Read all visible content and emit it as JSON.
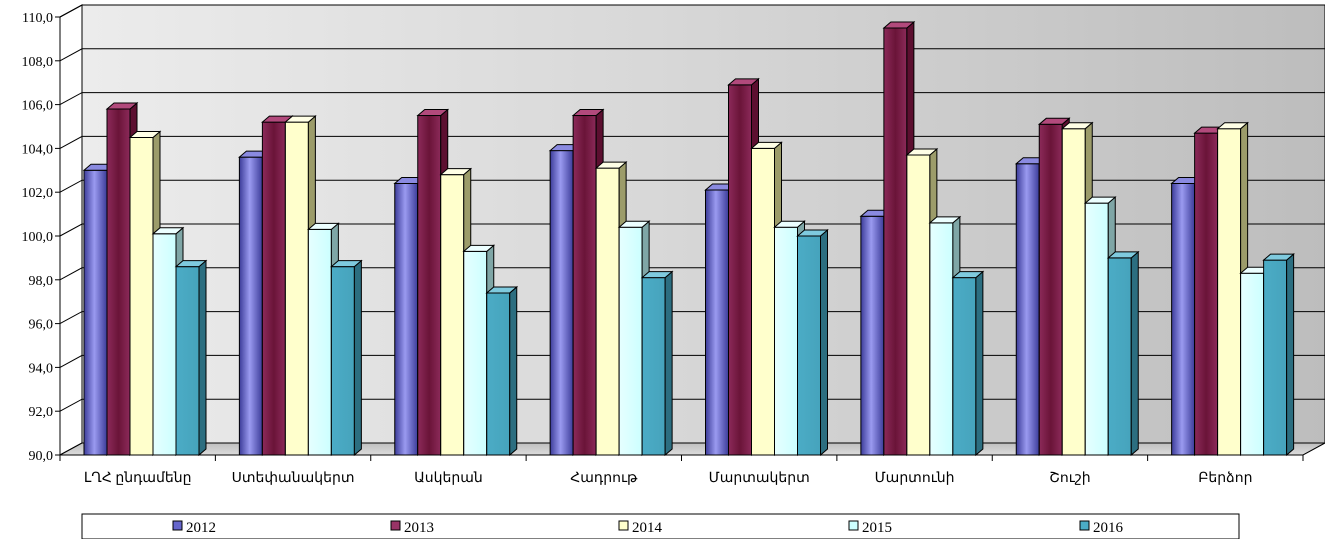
{
  "chart_data": {
    "type": "bar",
    "categories": [
      "ԼՂՀ ընդամենը",
      "Ստեփանակերտ",
      "Ասկերան",
      "Հադրութ",
      "Մարտակերտ",
      "Մարտունի",
      "Շուշի",
      "Բերձոր"
    ],
    "series": [
      {
        "name": "2012",
        "values": [
          103.0,
          103.6,
          102.4,
          103.9,
          102.1,
          100.9,
          103.3,
          102.4
        ]
      },
      {
        "name": "2013",
        "values": [
          105.8,
          105.2,
          105.5,
          105.5,
          106.9,
          109.5,
          105.1,
          104.7
        ]
      },
      {
        "name": "2014",
        "values": [
          104.5,
          105.2,
          102.8,
          103.1,
          104.0,
          103.7,
          104.9,
          104.9
        ]
      },
      {
        "name": "2015",
        "values": [
          100.1,
          100.3,
          99.3,
          100.4,
          100.4,
          100.6,
          101.5,
          98.3
        ]
      },
      {
        "name": "2016",
        "values": [
          98.6,
          98.6,
          97.4,
          98.1,
          100.0,
          98.1,
          99.0,
          98.9
        ]
      }
    ],
    "ylim": [
      90,
      110
    ],
    "yticks": [
      "90,0",
      "92,0",
      "94,0",
      "96,0",
      "98,0",
      "100,0",
      "102,0",
      "104,0",
      "106,0",
      "108,0",
      "110,0"
    ],
    "grid": true,
    "legend_position": "bottom",
    "colors": {
      "2012": "#6666cc",
      "2013": "#993366",
      "2014": "#ffffcc",
      "2015": "#ccffff",
      "2016": "#4bacc6"
    }
  }
}
